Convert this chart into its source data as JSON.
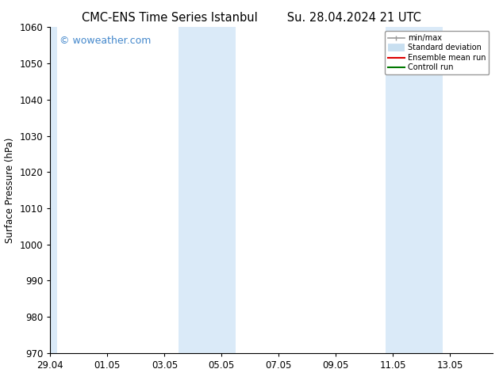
{
  "title_left": "CMC-ENS Time Series Istanbul",
  "title_right": "Su. 28.04.2024 21 UTC",
  "ylabel": "Surface Pressure (hPa)",
  "ylim": [
    970,
    1060
  ],
  "yticks": [
    970,
    980,
    990,
    1000,
    1010,
    1020,
    1030,
    1040,
    1050,
    1060
  ],
  "xtick_positions": [
    0,
    2,
    4,
    6,
    8,
    10,
    12,
    14
  ],
  "xtick_labels": [
    "29.04",
    "01.05",
    "03.05",
    "05.05",
    "07.05",
    "09.05",
    "11.05",
    "13.05"
  ],
  "x_min": 0,
  "x_max": 15.5,
  "shaded_bands": [
    {
      "x_start": 0.0,
      "x_end": 0.25
    },
    {
      "x_start": 4.5,
      "x_end": 6.5
    },
    {
      "x_start": 11.75,
      "x_end": 13.75
    }
  ],
  "shaded_color": "#daeaf8",
  "watermark_text": "© woweather.com",
  "watermark_color": "#4488cc",
  "legend_items": [
    {
      "label": "min/max",
      "color": "#999999",
      "lw": 1.2
    },
    {
      "label": "Standard deviation",
      "color": "#c8dff0",
      "lw": 7
    },
    {
      "label": "Ensemble mean run",
      "color": "#dd0000",
      "lw": 1.5
    },
    {
      "label": "Controll run",
      "color": "#007700",
      "lw": 1.5
    }
  ],
  "bg_color": "#ffffff",
  "spine_color": "#000000",
  "tick_color": "#000000",
  "font_size": 8.5,
  "title_fontsize": 10.5
}
